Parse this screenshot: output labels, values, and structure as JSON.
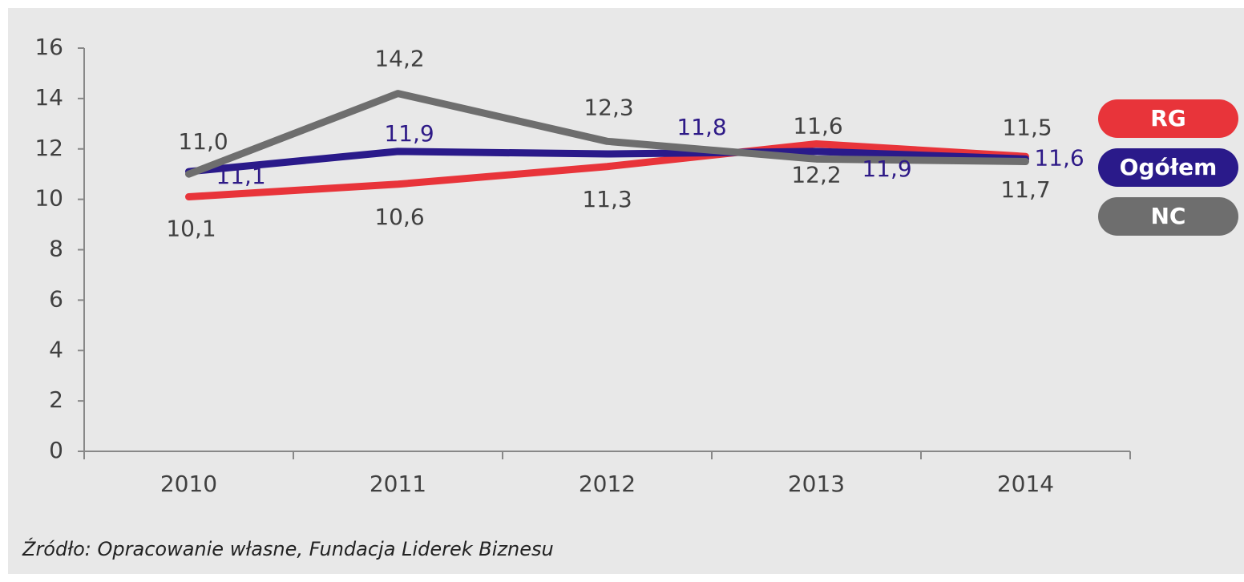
{
  "chart_data": {
    "type": "line",
    "categories": [
      "2010",
      "2011",
      "2012",
      "2013",
      "2014"
    ],
    "series": [
      {
        "name": "RG",
        "color": "#e8343a",
        "label_color": "#404040",
        "values": [
          10.1,
          10.6,
          11.3,
          12.2,
          11.7
        ],
        "value_labels": [
          "10,1",
          "10,6",
          "11,3",
          "12,2",
          "11,7"
        ]
      },
      {
        "name": "Ogółem",
        "color": "#2a1a8a",
        "label_color": "#2e1a87",
        "values": [
          11.1,
          11.9,
          11.8,
          11.9,
          11.6
        ],
        "value_labels": [
          "11,1",
          "11,9",
          "11,8",
          "11,9",
          "11,6"
        ]
      },
      {
        "name": "NC",
        "color": "#6e6e6e",
        "label_color": "#404040",
        "values": [
          11.0,
          14.2,
          12.3,
          11.6,
          11.5
        ],
        "value_labels": [
          "11,0",
          "14,2",
          "12,3",
          "11,6",
          "11,5"
        ]
      }
    ],
    "ylim": [
      0,
      16
    ],
    "yticks": [
      0,
      2,
      4,
      6,
      8,
      10,
      12,
      14,
      16
    ],
    "legend": "right",
    "source": "Źródło: Opracowanie własne, Fundacja Liderek Biznesu"
  }
}
